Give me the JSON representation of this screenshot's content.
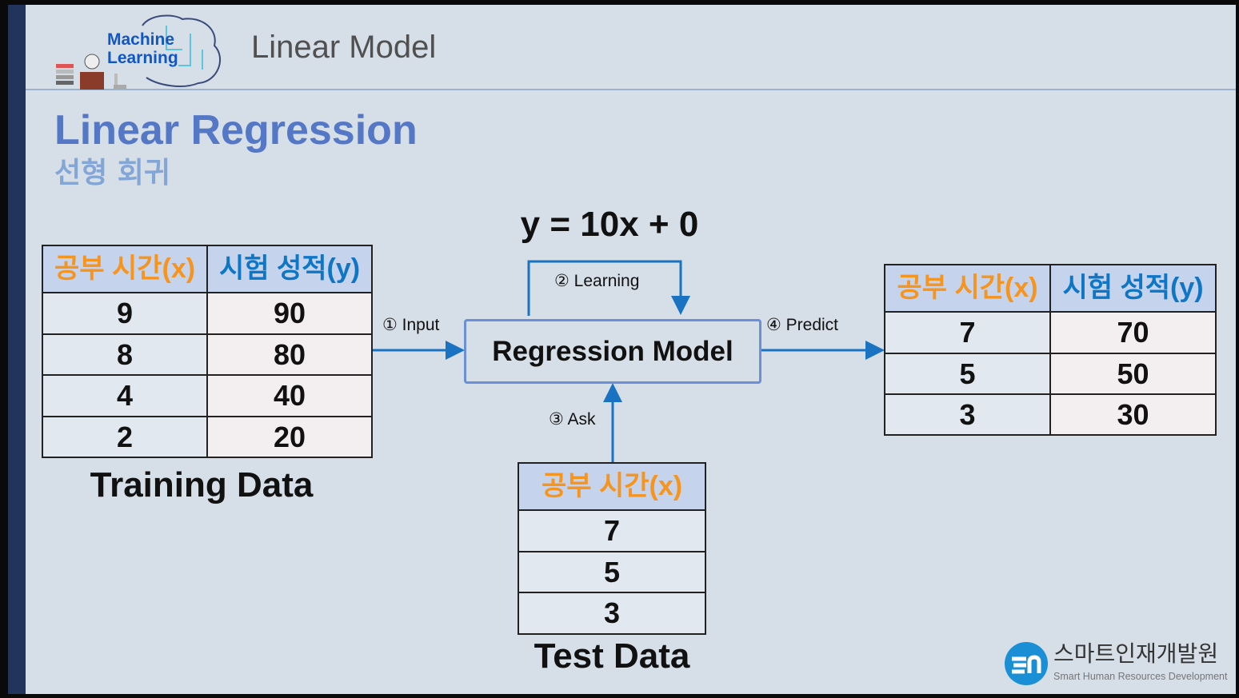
{
  "header": {
    "logo_text": [
      "Machine",
      "Learning"
    ],
    "title": "Linear Model"
  },
  "slide": {
    "title": "Linear Regression",
    "subtitle": "선형 회귀"
  },
  "equation": "y = 10x + 0",
  "training": {
    "headers": [
      "공부 시간(x)",
      "시험 성적(y)"
    ],
    "rows": [
      [
        "9",
        "90"
      ],
      [
        "8",
        "80"
      ],
      [
        "4",
        "40"
      ],
      [
        "2",
        "20"
      ]
    ],
    "caption": "Training Data"
  },
  "test": {
    "headers": [
      "공부 시간(x)"
    ],
    "rows": [
      [
        "7"
      ],
      [
        "5"
      ],
      [
        "3"
      ]
    ],
    "caption": "Test Data"
  },
  "prediction": {
    "headers": [
      "공부 시간(x)",
      "시험 성적(y)"
    ],
    "rows": [
      [
        "7",
        "70"
      ],
      [
        "5",
        "50"
      ],
      [
        "3",
        "30"
      ]
    ]
  },
  "model": {
    "label": "Regression Model"
  },
  "steps": {
    "input": "① Input",
    "learning": "② Learning",
    "ask": "③ Ask",
    "predict": "④ Predict"
  },
  "brand": {
    "name": "스마트인재개발원",
    "tagline": "Smart Human Resources Development"
  },
  "colors": {
    "x_header": "#f7941d",
    "y_header": "#0f75c5",
    "arrow": "#1a73c2",
    "title": "#5477c6"
  }
}
